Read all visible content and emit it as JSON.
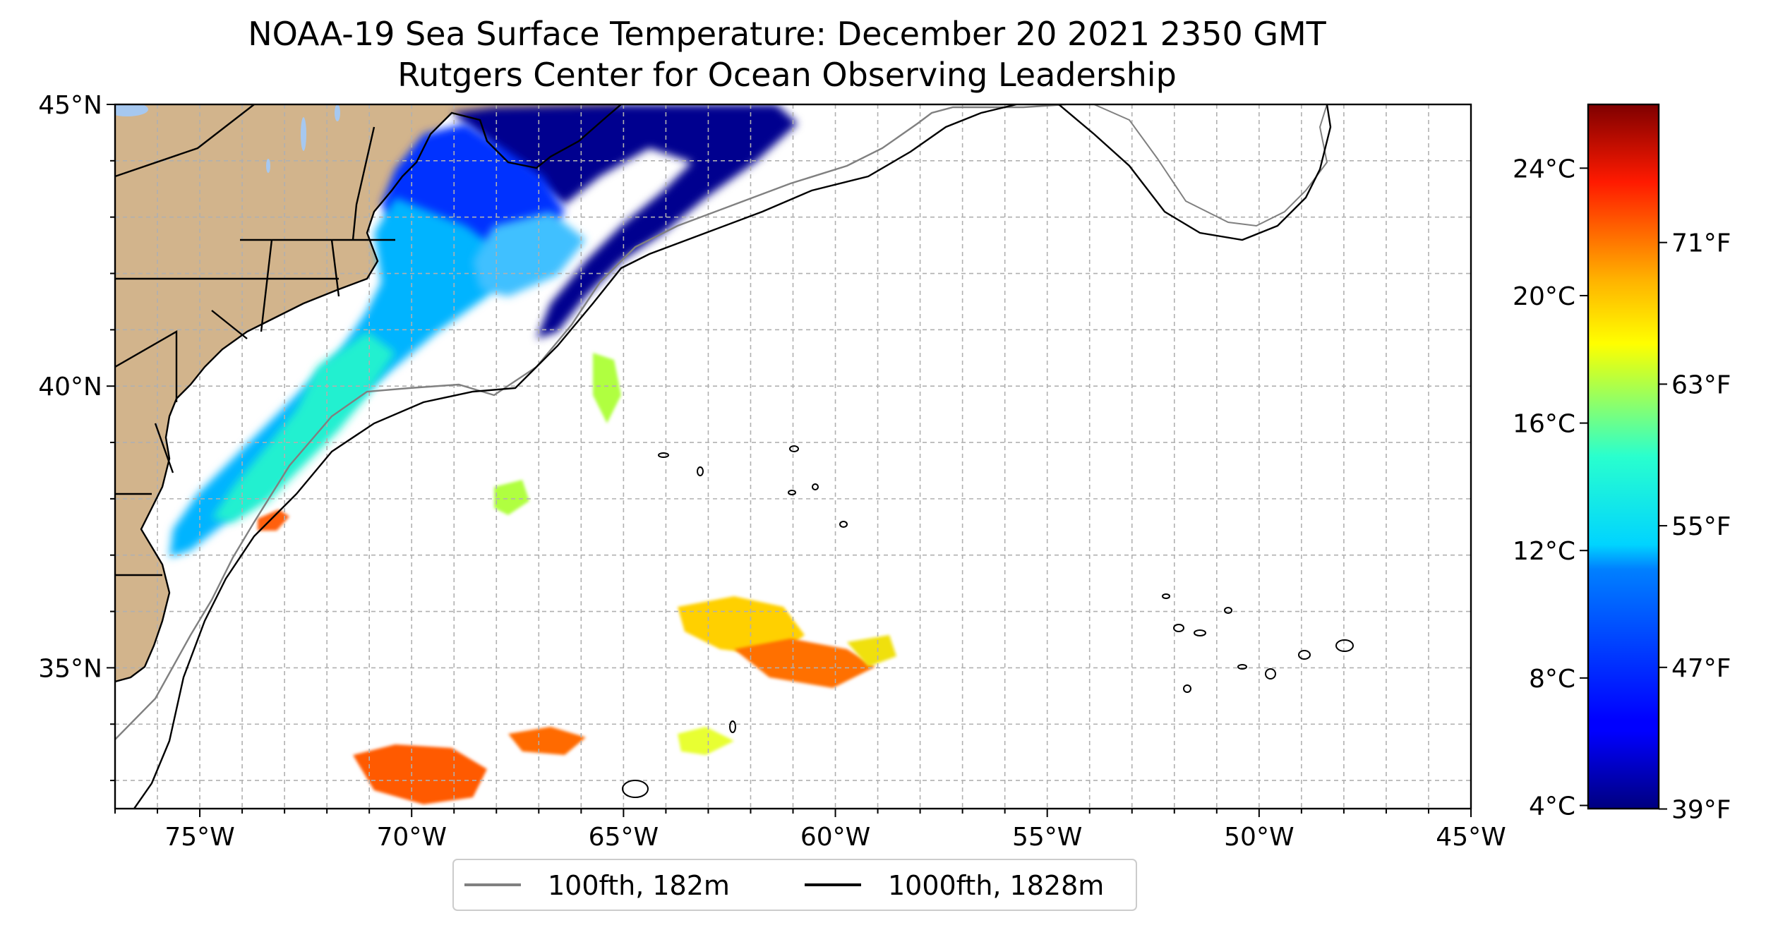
{
  "title": "NOAA-19 Sea Surface Temperature: December 20 2021 2350 GMT",
  "subtitle": "Rutgers Center for Ocean Observing Leadership",
  "map": {
    "lon_range": [
      -77,
      -45
    ],
    "lat_range": [
      32.5,
      45
    ],
    "lon_ticks": [
      {
        "value": -75,
        "label": "75°W"
      },
      {
        "value": -70,
        "label": "70°W"
      },
      {
        "value": -65,
        "label": "65°W"
      },
      {
        "value": -60,
        "label": "60°W"
      },
      {
        "value": -55,
        "label": "55°W"
      },
      {
        "value": -50,
        "label": "50°W"
      },
      {
        "value": -45,
        "label": "45°W"
      }
    ],
    "lat_ticks": [
      {
        "value": 45,
        "label": "45°N"
      },
      {
        "value": 40,
        "label": "40°N"
      },
      {
        "value": 35,
        "label": "35°N"
      }
    ],
    "gridline_step_deg": 1,
    "colors": {
      "land": "#d2b48c",
      "lakes": "#a6c8f0",
      "grid": "#b0b0b0",
      "isobath_100": "#808080",
      "isobath_1000": "#000000"
    }
  },
  "legend": {
    "entries": [
      {
        "label": "100fth, 182m",
        "color": "#808080"
      },
      {
        "label": "1000fth, 1828m",
        "color": "#000000"
      }
    ],
    "placement": "bottom-center"
  },
  "colorbar": {
    "colormap": "jet",
    "range_c": [
      3.9,
      26.0
    ],
    "celsius_ticks": [
      {
        "value": 4,
        "label": "4°C"
      },
      {
        "value": 8,
        "label": "8°C"
      },
      {
        "value": 12,
        "label": "12°C"
      },
      {
        "value": 16,
        "label": "16°C"
      },
      {
        "value": 20,
        "label": "20°C"
      },
      {
        "value": 24,
        "label": "24°C"
      }
    ],
    "fahrenheit_ticks": [
      {
        "value": 39,
        "label": "39°F"
      },
      {
        "value": 47,
        "label": "47°F"
      },
      {
        "value": 55,
        "label": "55°F"
      },
      {
        "value": 63,
        "label": "63°F"
      },
      {
        "value": 71,
        "label": "71°F"
      }
    ]
  }
}
